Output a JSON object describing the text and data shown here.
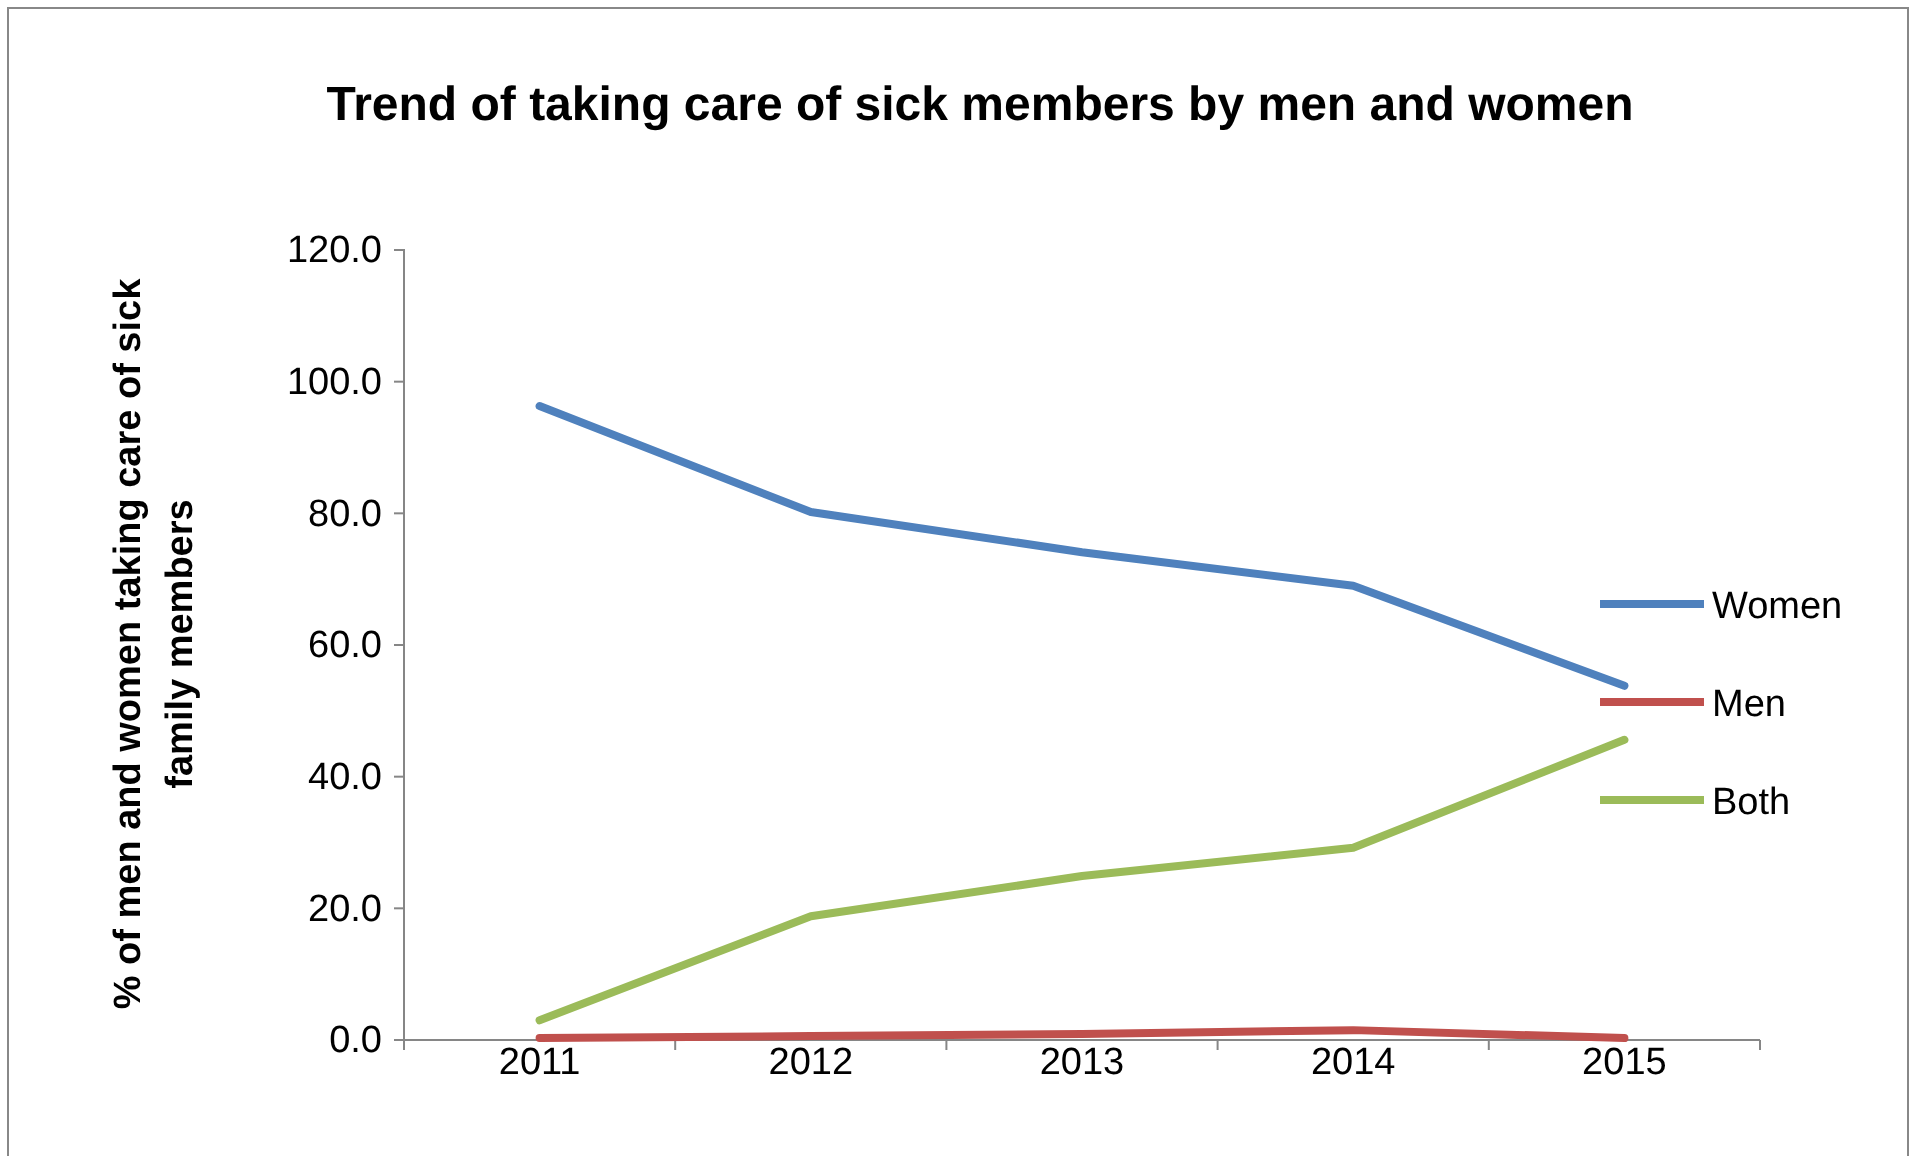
{
  "chart_data": {
    "type": "line",
    "title": "Trend of taking care of sick members by men and women",
    "ylabel": "% of men and women taking care of sick family members",
    "categories": [
      "2011",
      "2012",
      "2013",
      "2014",
      "2015"
    ],
    "series": [
      {
        "name": "Women",
        "color": "#4f81bd",
        "values": [
          96.3,
          80.2,
          74.1,
          69.0,
          53.8
        ]
      },
      {
        "name": "Men",
        "color": "#c0504d",
        "values": [
          0.3,
          0.6,
          0.9,
          1.5,
          0.3
        ]
      },
      {
        "name": "Both",
        "color": "#9bbb59",
        "values": [
          3.0,
          18.8,
          24.9,
          29.2,
          45.6
        ]
      }
    ],
    "ylim": [
      0,
      120
    ],
    "yticks": [
      {
        "value": 0,
        "label": "0.0"
      },
      {
        "value": 20,
        "label": "20.0"
      },
      {
        "value": 40,
        "label": "40.0"
      },
      {
        "value": 60,
        "label": "60.0"
      },
      {
        "value": 80,
        "label": "80.0"
      },
      {
        "value": 100,
        "label": "100.0"
      },
      {
        "value": 120,
        "label": "120.0"
      }
    ],
    "grid": false,
    "legend": "right",
    "marker": "none",
    "line_style": "solid"
  }
}
